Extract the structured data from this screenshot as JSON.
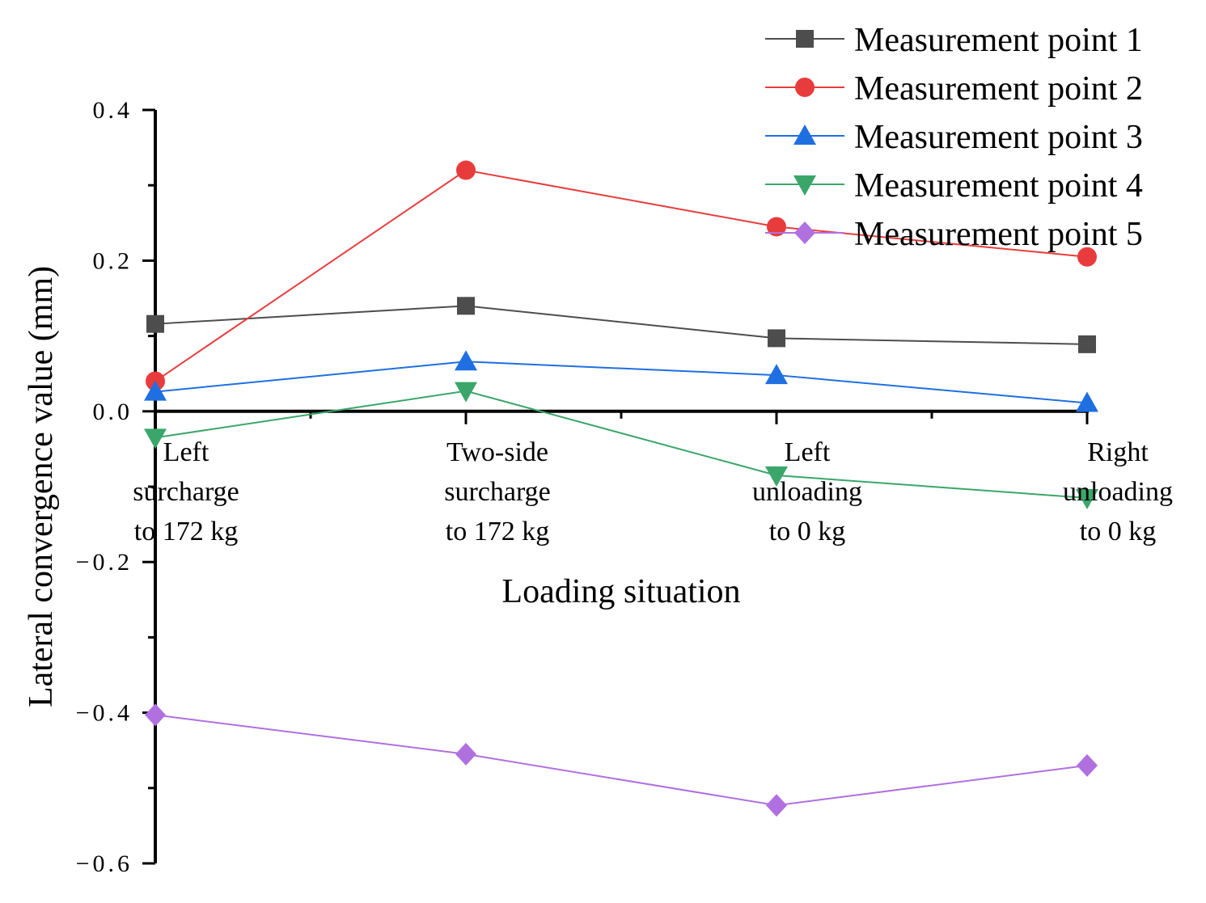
{
  "chart_data": {
    "type": "line",
    "title": "",
    "xlabel": "Loading situation",
    "ylabel": "Lateral convergence value (mm)",
    "ylim": [
      -0.6,
      0.4
    ],
    "yticks": [
      -0.6,
      -0.4,
      -0.2,
      0.0,
      0.2,
      0.4
    ],
    "ytick_labels": [
      "−0.6",
      "−0.4",
      "−0.2",
      "0.0",
      "0.2",
      "0.4"
    ],
    "grid": false,
    "legend_position": "top-right",
    "categories": [
      [
        "Left",
        "surcharge",
        "to 172 kg"
      ],
      [
        "Two-side",
        "surcharge",
        "to 172 kg"
      ],
      [
        "Left",
        "unloading",
        "to 0 kg"
      ],
      [
        "Right",
        "unloading",
        "to 0 kg"
      ]
    ],
    "series": [
      {
        "name": "Measurement point 1",
        "color": "#4d4d4d",
        "marker": "square",
        "values": [
          0.116,
          0.14,
          0.097,
          0.089
        ]
      },
      {
        "name": "Measurement point 2",
        "color": "#e83c3c",
        "marker": "circle",
        "values": [
          0.04,
          0.32,
          0.245,
          0.205
        ]
      },
      {
        "name": "Measurement point 3",
        "color": "#1f6fe0",
        "marker": "triangle-up",
        "values": [
          0.026,
          0.066,
          0.048,
          0.011
        ]
      },
      {
        "name": "Measurement point 4",
        "color": "#3aa66a",
        "marker": "triangle-down",
        "values": [
          -0.035,
          0.027,
          -0.085,
          -0.115
        ]
      },
      {
        "name": "Measurement point 5",
        "color": "#b070e0",
        "marker": "diamond",
        "values": [
          -0.403,
          -0.455,
          -0.523,
          -0.47
        ]
      }
    ]
  }
}
